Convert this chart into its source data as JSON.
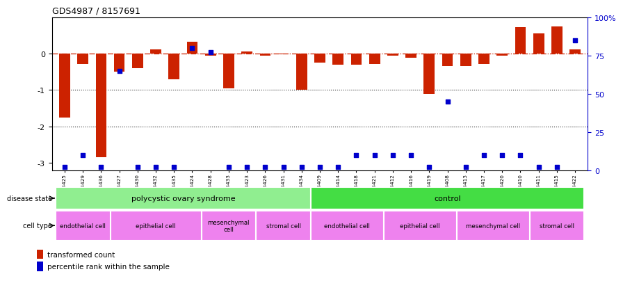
{
  "title": "GDS4987 / 8157691",
  "samples": [
    "GSM1174425",
    "GSM1174429",
    "GSM1174436",
    "GSM1174427",
    "GSM1174430",
    "GSM1174432",
    "GSM1174435",
    "GSM1174424",
    "GSM1174428",
    "GSM1174433",
    "GSM1174423",
    "GSM1174426",
    "GSM1174431",
    "GSM1174434",
    "GSM1174409",
    "GSM1174414",
    "GSM1174418",
    "GSM1174421",
    "GSM1174412",
    "GSM1174416",
    "GSM1174419",
    "GSM1174408",
    "GSM1174413",
    "GSM1174417",
    "GSM1174420",
    "GSM1174410",
    "GSM1174411",
    "GSM1174415",
    "GSM1174422"
  ],
  "red_bars": [
    -1.75,
    -0.28,
    -2.85,
    -0.5,
    -0.4,
    0.12,
    -0.7,
    0.32,
    -0.05,
    -0.95,
    0.05,
    -0.05,
    -0.02,
    -1.0,
    -0.25,
    -0.3,
    -0.3,
    -0.28,
    -0.05,
    -0.12,
    -1.1,
    -0.35,
    -0.35,
    -0.28,
    -0.05,
    0.72,
    0.55,
    0.75,
    0.12
  ],
  "blue_dots_pct": [
    2,
    10,
    2,
    65,
    2,
    2,
    2,
    80,
    77,
    2,
    2,
    2,
    2,
    2,
    2,
    2,
    10,
    10,
    10,
    10,
    2,
    45,
    2,
    10,
    10,
    10,
    2,
    2,
    85
  ],
  "disease_state_groups": [
    {
      "label": "polycystic ovary syndrome",
      "start": 0,
      "end": 13,
      "color": "#90EE90"
    },
    {
      "label": "control",
      "start": 14,
      "end": 28,
      "color": "#44DD44"
    }
  ],
  "cell_type_groups": [
    {
      "label": "endothelial cell",
      "start": 0,
      "end": 2,
      "color": "#EE82EE"
    },
    {
      "label": "epithelial cell",
      "start": 3,
      "end": 7,
      "color": "#EE82EE"
    },
    {
      "label": "mesenchymal\ncell",
      "start": 8,
      "end": 10,
      "color": "#EE82EE"
    },
    {
      "label": "stromal cell",
      "start": 11,
      "end": 13,
      "color": "#EE82EE"
    },
    {
      "label": "endothelial cell",
      "start": 14,
      "end": 17,
      "color": "#EE82EE"
    },
    {
      "label": "epithelial cell",
      "start": 18,
      "end": 21,
      "color": "#EE82EE"
    },
    {
      "label": "mesenchymal cell",
      "start": 22,
      "end": 25,
      "color": "#EE82EE"
    },
    {
      "label": "stromal cell",
      "start": 26,
      "end": 28,
      "color": "#EE82EE"
    }
  ],
  "ylim_left": [
    -3.2,
    1.0
  ],
  "ylim_right": [
    0,
    100
  ],
  "yticks_left": [
    0,
    -1,
    -2,
    -3
  ],
  "yticks_right": [
    0,
    25,
    50,
    75,
    100
  ],
  "bar_color": "#CC2200",
  "dot_color": "#0000CC",
  "zeroline_color": "#CC2200",
  "grid_color": "#333333",
  "grid_levels": [
    -1,
    -2
  ],
  "background_color": "#ffffff",
  "legend_items": [
    {
      "label": "transformed count",
      "color": "#CC2200"
    },
    {
      "label": "percentile rank within the sample",
      "color": "#0000CC"
    }
  ]
}
